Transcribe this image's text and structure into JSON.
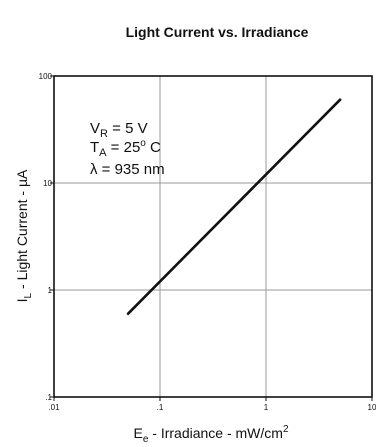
{
  "chart_data": {
    "type": "line",
    "title": "Light Current vs. Irradiance",
    "xlabel": {
      "main": "E",
      "sub": "e",
      "rest": " - Irradiance - mW/cm",
      "sup": "2"
    },
    "ylabel": {
      "main": "I",
      "sub": "L",
      "rest": " - Light Current - µA"
    },
    "x_scale": "log",
    "y_scale": "log",
    "xlim": [
      0.01,
      10
    ],
    "ylim": [
      0.1,
      100
    ],
    "x_ticks": [
      0.01,
      0.1,
      1,
      10
    ],
    "x_tick_labels": [
      ".01",
      ".1",
      "1",
      "10"
    ],
    "y_ticks": [
      0.1,
      1,
      10,
      100
    ],
    "y_tick_labels": [
      ".1",
      "1",
      "10",
      "100"
    ],
    "grid": true,
    "legend": "none",
    "annotations": {
      "vr": {
        "main": "V",
        "sub": "R",
        "rest": " = 5 V"
      },
      "ta": {
        "main": "T",
        "sub": "A",
        "rest": " = 25",
        "sup": "o",
        "tail": " C"
      },
      "lambda": "λ = 935 nm"
    },
    "series": [
      {
        "x": [
          0.05,
          5
        ],
        "y": [
          0.6,
          60
        ]
      }
    ]
  }
}
